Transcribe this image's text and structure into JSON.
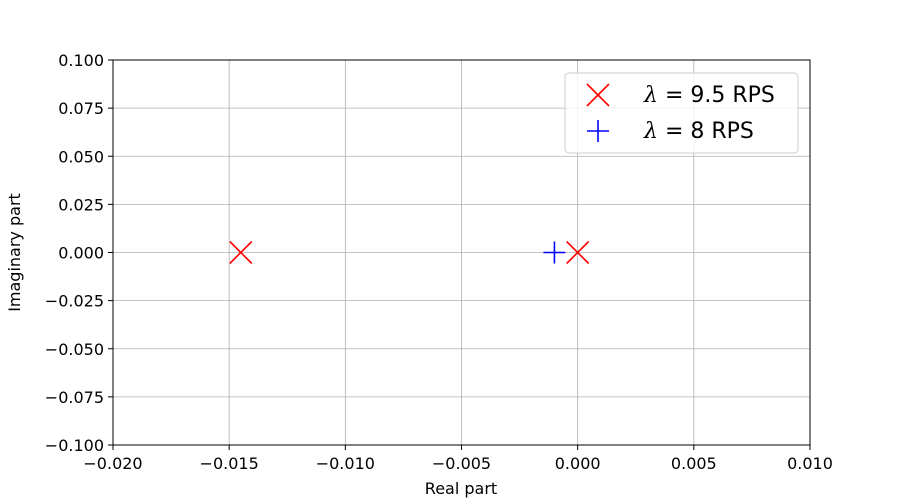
{
  "chart_data": {
    "type": "scatter",
    "xlabel": "Real part",
    "ylabel": "Imaginary part",
    "xlim": [
      -0.02,
      0.01
    ],
    "ylim": [
      -0.1,
      0.1
    ],
    "x_ticks": [
      -0.02,
      -0.015,
      -0.01,
      -0.005,
      0.0,
      0.005,
      0.01
    ],
    "x_tick_labels": [
      "−0.020",
      "−0.015",
      "−0.010",
      "−0.005",
      "0.000",
      "0.005",
      "0.010"
    ],
    "y_ticks": [
      0.1,
      0.075,
      0.05,
      0.025,
      0.0,
      -0.025,
      -0.05,
      -0.075,
      -0.1
    ],
    "y_tick_labels": [
      "0.100",
      "0.075",
      "0.050",
      "0.025",
      "0.000",
      "−0.025",
      "−0.050",
      "−0.075",
      "−0.100"
    ],
    "grid": true,
    "legend_position": "top-right",
    "series": [
      {
        "name": "λ = 9.5 RPS",
        "legend_symbol": "λ",
        "legend_text": " = 9.5 RPS",
        "marker": "x",
        "color": "#ff0000",
        "points": [
          {
            "x": -0.0145,
            "y": 0.0
          },
          {
            "x": 0.0,
            "y": 0.0
          }
        ]
      },
      {
        "name": "λ = 8 RPS",
        "legend_symbol": "λ",
        "legend_text": " = 8 RPS",
        "marker": "+",
        "color": "#0000ff",
        "points": [
          {
            "x": -0.001,
            "y": 0.0
          }
        ]
      }
    ]
  }
}
